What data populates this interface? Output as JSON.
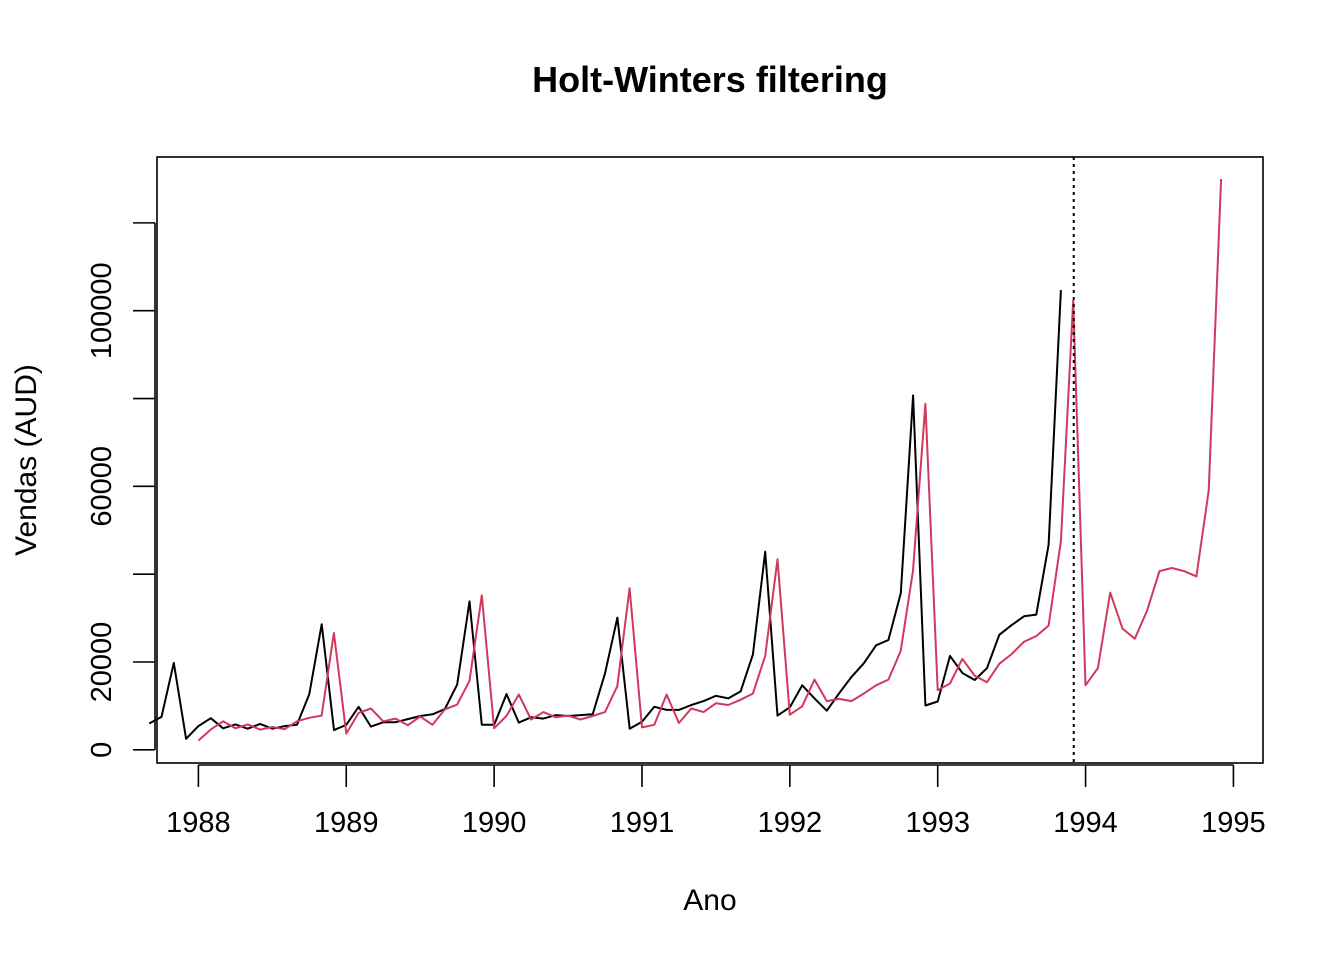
{
  "chart_data": {
    "type": "line",
    "title": "Holt-Winters filtering",
    "xlabel": "Ano",
    "ylabel": "Vendas (AUD)",
    "xlim": [
      1987.72,
      1995.2
    ],
    "ylim": [
      -3000,
      135000
    ],
    "x_ticks": [
      1988,
      1989,
      1990,
      1991,
      1992,
      1993,
      1994,
      1995
    ],
    "x_tick_labels": [
      "1988",
      "1989",
      "1990",
      "1991",
      "1992",
      "1993",
      "1994",
      "1995"
    ],
    "y_ticks": [
      0,
      20000,
      40000,
      60000,
      80000,
      100000,
      120000
    ],
    "y_tick_labels": [
      "0",
      "20000",
      "",
      "60000",
      "",
      "100000",
      ""
    ],
    "vline": {
      "x": 1993.92,
      "style": "dotted",
      "color": "#000000"
    },
    "grid": false,
    "legend": "none",
    "series": [
      {
        "color": "#000000",
        "start": 1987.667,
        "step": 0.08333,
        "values": [
          6000,
          7500,
          19800,
          2500,
          5400,
          7200,
          4900,
          5800,
          4800,
          5900,
          4800,
          5400,
          5700,
          12700,
          28600,
          4500,
          5700,
          9800,
          5300,
          6300,
          6300,
          7000,
          7700,
          8100,
          9300,
          14900,
          33800,
          5700,
          5700,
          12700,
          6200,
          7400,
          7100,
          7900,
          7700,
          7900,
          8100,
          17400,
          30100,
          4800,
          6400,
          9800,
          9100,
          9100,
          10200,
          11100,
          12300,
          11700,
          13300,
          21700,
          45100,
          7800,
          9700,
          14700,
          11700,
          8900,
          12900,
          16600,
          19700,
          23800,
          25000,
          35700,
          80700,
          10100,
          11000,
          21400,
          17500,
          15900,
          18600,
          26200,
          28400,
          30400,
          30800,
          46700,
          104700
        ]
      },
      {
        "color": "#D1395C",
        "start": 1988.0,
        "step": 0.08333,
        "values": [
          2100,
          4600,
          6500,
          4900,
          5800,
          4600,
          5200,
          4700,
          6500,
          7300,
          7800,
          26600,
          3700,
          8400,
          9400,
          6500,
          7100,
          5600,
          7600,
          5700,
          9200,
          10300,
          15700,
          35200,
          4900,
          7700,
          12600,
          6900,
          8600,
          7400,
          7800,
          6900,
          7700,
          8600,
          14500,
          36800,
          5100,
          5700,
          12600,
          6100,
          9400,
          8600,
          10600,
          10200,
          11400,
          12800,
          21400,
          43400,
          8000,
          9900,
          16000,
          11100,
          11600,
          11100,
          12800,
          14700,
          16000,
          22500,
          40800,
          78800,
          13600,
          15100,
          20700,
          16900,
          15400,
          19600,
          21800,
          24600,
          25900,
          28300,
          47500,
          102300,
          14700,
          18600,
          35800,
          27600,
          25300,
          31700,
          40700,
          41400,
          40700,
          39500,
          59000,
          130000
        ]
      }
    ]
  }
}
